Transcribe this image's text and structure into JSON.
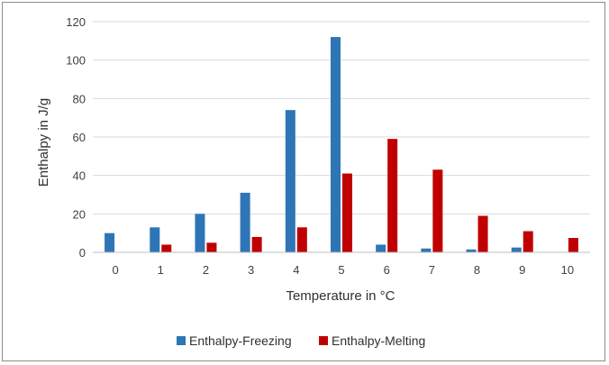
{
  "chart_data": {
    "type": "bar",
    "title": "",
    "xlabel": "Temperature in °C",
    "ylabel": "Enthalpy in J/g",
    "ylim": [
      0,
      120
    ],
    "yticks": [
      0,
      20,
      40,
      60,
      80,
      100,
      120
    ],
    "grid": true,
    "legend_position": "bottom",
    "categories": [
      "0",
      "1",
      "2",
      "3",
      "4",
      "5",
      "6",
      "7",
      "8",
      "9",
      "10"
    ],
    "series": [
      {
        "name": "Enthalpy-Freezing",
        "color": "#2E75B6",
        "values": [
          10,
          13,
          20,
          31,
          74,
          112,
          4,
          2,
          1.5,
          2.5,
          null
        ]
      },
      {
        "name": "Enthalpy-Melting",
        "color": "#C00000",
        "values": [
          null,
          4,
          5,
          8,
          13,
          41,
          59,
          43,
          19,
          11,
          7.5
        ]
      }
    ]
  }
}
